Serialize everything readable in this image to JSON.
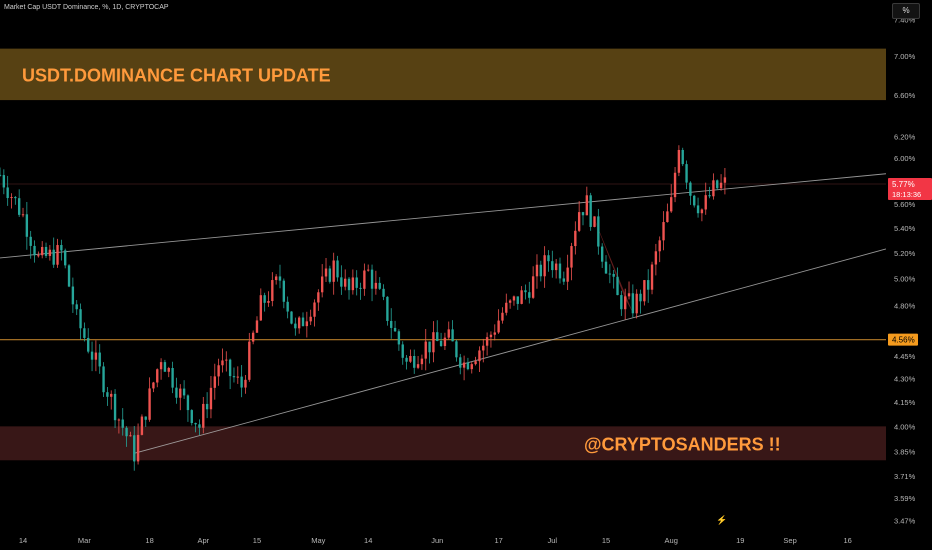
{
  "header": {
    "title": "Market Cap USDT Dominance, %, 1D, CRYPTOCAP"
  },
  "scale_button": "%",
  "banner": {
    "text": "USDT.DOMINANCE CHART UPDATE",
    "text_color": "#ff9a3c",
    "fill": "#5c4414"
  },
  "watermark": {
    "text": "@CRYPTOSANDERS !!",
    "text_color": "#ff9a3c",
    "fill": "#3b1818"
  },
  "price_labels": {
    "last_price": "5.77%",
    "countdown": "18:13:36",
    "last_color": "#f23645",
    "support": "4.56%",
    "support_color": "#f59b1e"
  },
  "icons": {
    "event_icon": "lightning-icon"
  },
  "chart_data": {
    "type": "candlestick",
    "y_axis": {
      "scale": "log",
      "range": [
        3.42,
        7.62
      ],
      "tick_labels": [
        "7.40%",
        "7.00%",
        "6.60%",
        "6.20%",
        "6.00%",
        "5.60%",
        "5.40%",
        "5.20%",
        "5.00%",
        "4.80%",
        "4.45%",
        "4.30%",
        "4.15%",
        "4.00%",
        "3.85%",
        "3.71%",
        "3.59%",
        "3.47%"
      ]
    },
    "x_axis": {
      "tick_labels": [
        "14",
        "Mar",
        "18",
        "Apr",
        "15",
        "May",
        "14",
        "Jun",
        "17",
        "Jul",
        "15",
        "Aug",
        "19",
        "Sep",
        "16"
      ],
      "tick_dates": [
        "2024-02-14",
        "2024-03-01",
        "2024-03-18",
        "2024-04-01",
        "2024-04-15",
        "2024-05-01",
        "2024-05-14",
        "2024-06-01",
        "2024-06-17",
        "2024-07-01",
        "2024-07-15",
        "2024-08-01",
        "2024-08-19",
        "2024-09-01",
        "2024-09-16"
      ],
      "range": [
        "2024-02-08",
        "2024-09-26"
      ]
    },
    "colors": {
      "up": "#26a69a",
      "down": "#ef5350"
    },
    "close_path": [
      [
        "2024-02-08",
        5.85
      ],
      [
        "2024-02-14",
        5.5
      ],
      [
        "2024-02-18",
        5.15
      ],
      [
        "2024-02-24",
        5.2
      ],
      [
        "2024-02-28",
        4.7
      ],
      [
        "2024-03-04",
        4.4
      ],
      [
        "2024-03-10",
        4.05
      ],
      [
        "2024-03-14",
        3.84
      ],
      [
        "2024-03-17",
        4.1
      ],
      [
        "2024-03-21",
        4.45
      ],
      [
        "2024-03-26",
        4.2
      ],
      [
        "2024-03-31",
        4.0
      ],
      [
        "2024-04-05",
        4.4
      ],
      [
        "2024-04-11",
        4.25
      ],
      [
        "2024-04-16",
        4.8
      ],
      [
        "2024-04-21",
        5.0
      ],
      [
        "2024-04-25",
        4.6
      ],
      [
        "2024-05-01",
        4.9
      ],
      [
        "2024-05-05",
        5.1
      ],
      [
        "2024-05-09",
        4.9
      ],
      [
        "2024-05-14",
        5.05
      ],
      [
        "2024-05-18",
        4.8
      ],
      [
        "2024-05-24",
        4.4
      ],
      [
        "2024-05-29",
        4.52
      ],
      [
        "2024-06-04",
        4.56
      ],
      [
        "2024-06-08",
        4.4
      ],
      [
        "2024-06-14",
        4.55
      ],
      [
        "2024-06-18",
        4.75
      ],
      [
        "2024-06-24",
        4.9
      ],
      [
        "2024-06-30",
        5.15
      ],
      [
        "2024-07-04",
        5.05
      ],
      [
        "2024-07-08",
        5.55
      ],
      [
        "2024-07-10",
        5.6
      ],
      [
        "2024-07-14",
        5.2
      ],
      [
        "2024-07-18",
        4.85
      ],
      [
        "2024-07-22",
        4.8
      ],
      [
        "2024-07-26",
        4.95
      ],
      [
        "2024-07-30",
        5.4
      ],
      [
        "2024-08-01",
        5.6
      ],
      [
        "2024-08-03",
        6.15
      ],
      [
        "2024-08-06",
        5.7
      ],
      [
        "2024-08-09",
        5.55
      ],
      [
        "2024-08-12",
        5.72
      ],
      [
        "2024-08-15",
        5.77
      ]
    ],
    "trendlines": [
      {
        "points": [
          [
            "2024-02-08",
            5.16
          ],
          [
            "2024-09-26",
            5.86
          ]
        ],
        "color": "#b0b0b0"
      },
      {
        "points": [
          [
            "2024-03-14",
            3.84
          ],
          [
            "2024-09-26",
            5.23
          ]
        ],
        "color": "#b0b0b0"
      }
    ],
    "horizontal_lines": [
      {
        "y": 4.56,
        "color": "#c98a2e"
      },
      {
        "y": 5.77,
        "color": "#6b2b2b"
      }
    ],
    "zones": [
      {
        "y_low": 6.55,
        "y_high": 7.08,
        "fill": "#5c4414"
      },
      {
        "y_low": 3.8,
        "y_high": 4.0,
        "fill": "#3b1818"
      }
    ],
    "wedge_highlight": {
      "points": [
        [
          "2024-07-11",
          5.55
        ],
        [
          "2024-07-20",
          4.85
        ],
        [
          "2024-07-22",
          4.75
        ]
      ],
      "fill": "#8b2a2a"
    },
    "annotations": [
      "USDT.DOMINANCE CHART UPDATE",
      "@CRYPTOSANDERS !!"
    ]
  }
}
